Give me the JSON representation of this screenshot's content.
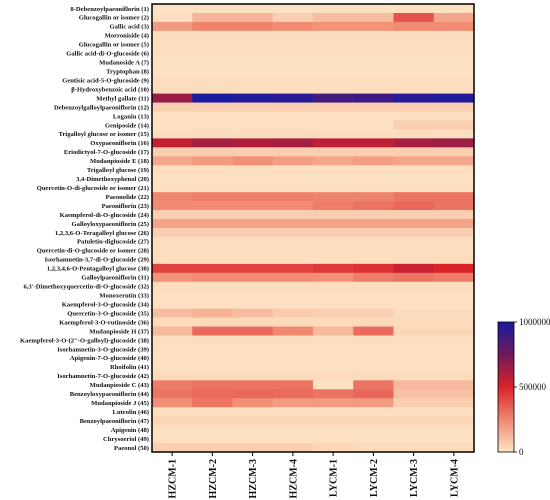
{
  "chart_data": {
    "type": "heatmap",
    "title": "",
    "xlabel": "",
    "ylabel": "",
    "columns": [
      "HZCM-1",
      "HZCM-2",
      "HZCM-3",
      "HZCM-4",
      "LYCM-1",
      "LYCM-2",
      "LYCM-3",
      "LYCM-4"
    ],
    "rows": [
      "8-Debenzoylpaeoniflorin (1)",
      "Glucogallin or isomer (2)",
      "Gallic acid (3)",
      "Morroniside (4)",
      "Glucogallin or isomer (5)",
      "Gallic acid-di-O-glucoside (6)",
      "Mudanoside A (7)",
      "Tryptophan (8)",
      "Gentisic acid-5-O-glucoside (9)",
      "β-Hydroxybenzoic acid (10)",
      "Methyl gallate (11)",
      "Debenzoylgalloylpaeoniflorin (12)",
      "Loganin (13)",
      "Geniposide (14)",
      "Trigalloyl glucose or isomer (15)",
      "Oxypaeoniflorin (16)",
      "Eriodictyol-7-O-glucoside (17)",
      "Mudanpioside E (18)",
      "Trigalloyl glucose (19)",
      "3,4-Dimethoxyphenol (20)",
      "Quercetin-O-di-glucoside or isomer (21)",
      "Paeonolide (22)",
      "Paeoniflorin (23)",
      "Kaempferol-di-O-glucoside (24)",
      "Galloyloxypaeoniflorin (25)",
      "1,2,3,6-O-Teragalloyl glucose (26)",
      "Patuletin-diglucoside (27)",
      "Quercetin-di-O-glucoside or isomer (28)",
      "Isorhamnetin-3,7-di-O-glucoside (29)",
      "1,2,3,4,6-O-Pentagalloyl glucose (30)",
      "Galloylpaeoniflorin (31)",
      "6,3'-Dimethoxyquercetin-di-O-glucoside (32)",
      "Monoxerutin (33)",
      "Kaempferol-3-O-glucoside (34)",
      "Quercetin-3-O-glucoside (35)",
      "Kaempferol-3-O-rutinoside (36)",
      "Mudanpioside H (37)",
      "Kaempferol-3-O-(2''-O-galloyl)-glucoside (38)",
      "Isorhamnetin-3-O-glucoside (39)",
      "Apigenin-7-O-glucoside (40)",
      "Rhoifolin (41)",
      "Isorhamnetin-7-O-glucoside (42)",
      "Mudanpioside C (43)",
      "Benzoyloxypaeoniflorin (44)",
      "Mudanpioside J (45)",
      "Luteolin (46)",
      "Benzoylpaeoniflorin (47)",
      "Apigenin (48)",
      "Chrysoeriol (49)",
      "Paeonol (50)"
    ],
    "values": [
      [
        10000,
        10000,
        10000,
        10000,
        10000,
        10000,
        10000,
        10000
      ],
      [
        15000,
        130000,
        130000,
        60000,
        110000,
        110000,
        380000,
        170000
      ],
      [
        200000,
        260000,
        260000,
        240000,
        220000,
        220000,
        240000,
        240000
      ],
      [
        20000,
        20000,
        20000,
        20000,
        20000,
        20000,
        20000,
        20000
      ],
      [
        20000,
        20000,
        20000,
        20000,
        20000,
        20000,
        20000,
        20000
      ],
      [
        20000,
        20000,
        20000,
        20000,
        20000,
        20000,
        20000,
        20000
      ],
      [
        10000,
        10000,
        10000,
        10000,
        10000,
        10000,
        10000,
        10000
      ],
      [
        10000,
        10000,
        10000,
        10000,
        10000,
        10000,
        10000,
        10000
      ],
      [
        20000,
        20000,
        20000,
        20000,
        20000,
        20000,
        20000,
        20000
      ],
      [
        20000,
        20000,
        20000,
        20000,
        20000,
        20000,
        20000,
        20000
      ],
      [
        650000,
        1000000,
        980000,
        960000,
        880000,
        900000,
        960000,
        980000
      ],
      [
        60000,
        60000,
        60000,
        60000,
        60000,
        60000,
        60000,
        60000
      ],
      [
        15000,
        15000,
        15000,
        15000,
        15000,
        15000,
        15000,
        15000
      ],
      [
        15000,
        15000,
        15000,
        15000,
        15000,
        15000,
        60000,
        60000
      ],
      [
        20000,
        20000,
        20000,
        20000,
        20000,
        20000,
        20000,
        20000
      ],
      [
        550000,
        620000,
        600000,
        620000,
        560000,
        560000,
        620000,
        640000
      ],
      [
        60000,
        60000,
        60000,
        60000,
        60000,
        60000,
        60000,
        60000
      ],
      [
        170000,
        200000,
        230000,
        190000,
        170000,
        190000,
        170000,
        170000
      ],
      [
        20000,
        20000,
        20000,
        20000,
        20000,
        20000,
        20000,
        20000
      ],
      [
        10000,
        10000,
        10000,
        10000,
        10000,
        10000,
        10000,
        10000
      ],
      [
        15000,
        15000,
        15000,
        15000,
        15000,
        15000,
        15000,
        15000
      ],
      [
        250000,
        270000,
        270000,
        270000,
        260000,
        260000,
        300000,
        300000
      ],
      [
        240000,
        240000,
        240000,
        240000,
        280000,
        300000,
        330000,
        300000
      ],
      [
        60000,
        60000,
        60000,
        60000,
        60000,
        60000,
        60000,
        60000
      ],
      [
        180000,
        180000,
        180000,
        180000,
        180000,
        180000,
        180000,
        180000
      ],
      [
        60000,
        60000,
        60000,
        60000,
        60000,
        60000,
        60000,
        60000
      ],
      [
        20000,
        20000,
        20000,
        20000,
        20000,
        20000,
        20000,
        20000
      ],
      [
        20000,
        20000,
        20000,
        20000,
        20000,
        20000,
        20000,
        20000
      ],
      [
        20000,
        20000,
        20000,
        20000,
        20000,
        20000,
        20000,
        20000
      ],
      [
        420000,
        420000,
        420000,
        420000,
        440000,
        460000,
        540000,
        500000
      ],
      [
        220000,
        240000,
        240000,
        240000,
        230000,
        280000,
        300000,
        280000
      ],
      [
        20000,
        20000,
        20000,
        20000,
        20000,
        20000,
        20000,
        20000
      ],
      [
        15000,
        15000,
        15000,
        15000,
        15000,
        15000,
        15000,
        15000
      ],
      [
        15000,
        15000,
        15000,
        15000,
        15000,
        15000,
        15000,
        15000
      ],
      [
        110000,
        140000,
        110000,
        70000,
        60000,
        60000,
        30000,
        30000
      ],
      [
        30000,
        30000,
        30000,
        30000,
        30000,
        30000,
        30000,
        30000
      ],
      [
        120000,
        320000,
        320000,
        250000,
        120000,
        320000,
        40000,
        40000
      ],
      [
        20000,
        20000,
        20000,
        20000,
        20000,
        20000,
        20000,
        20000
      ],
      [
        15000,
        15000,
        15000,
        15000,
        15000,
        15000,
        15000,
        15000
      ],
      [
        15000,
        15000,
        15000,
        15000,
        15000,
        15000,
        15000,
        15000
      ],
      [
        15000,
        15000,
        15000,
        15000,
        15000,
        15000,
        15000,
        15000
      ],
      [
        30000,
        30000,
        30000,
        30000,
        30000,
        30000,
        30000,
        30000
      ],
      [
        280000,
        300000,
        300000,
        300000,
        10000,
        300000,
        120000,
        120000
      ],
      [
        300000,
        320000,
        330000,
        320000,
        300000,
        330000,
        100000,
        100000
      ],
      [
        230000,
        300000,
        230000,
        200000,
        200000,
        200000,
        60000,
        60000
      ],
      [
        15000,
        15000,
        15000,
        15000,
        15000,
        15000,
        15000,
        15000
      ],
      [
        40000,
        40000,
        40000,
        40000,
        40000,
        40000,
        40000,
        40000
      ],
      [
        15000,
        15000,
        15000,
        15000,
        15000,
        15000,
        15000,
        15000
      ],
      [
        15000,
        15000,
        15000,
        15000,
        15000,
        15000,
        15000,
        15000
      ],
      [
        60000,
        60000,
        60000,
        60000,
        40000,
        30000,
        30000,
        30000
      ]
    ],
    "colorbar": {
      "min": 0,
      "max": 1000000,
      "ticks": [
        0,
        500000,
        1000000
      ],
      "tick_labels": [
        "0",
        "500000",
        "1000000"
      ],
      "colors": [
        "#fde6c6",
        "#f08870",
        "#d9222a",
        "#6f1a5a",
        "#1a1aa0"
      ]
    },
    "grid": false,
    "legend": "right"
  }
}
